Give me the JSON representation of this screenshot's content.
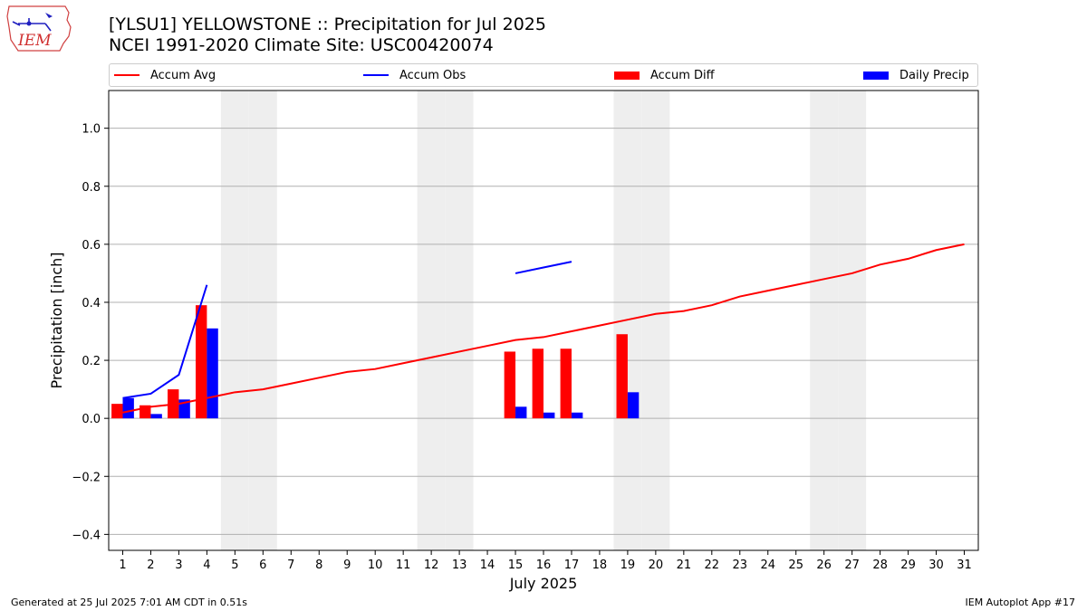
{
  "title": {
    "line1": "[YLSU1] YELLOWSTONE :: Precipitation for Jul 2025",
    "line2": "NCEI 1991-2020 Climate Site: USC00420074"
  },
  "logo_text": "IEM",
  "footer": {
    "left": "Generated at 25 Jul 2025 7:01 AM CDT in 0.51s",
    "right": "IEM Autoplot App #17"
  },
  "colors": {
    "avg": "#ff0000",
    "obs": "#0000ff",
    "diff": "#ff0000",
    "daily": "#0000ff",
    "weekend": "#eeeeee",
    "grid": "#b0b0b0"
  },
  "legend": {
    "avg": "Accum Avg",
    "obs": "Accum Obs",
    "diff": "Accum Diff",
    "daily": "Daily Precip"
  },
  "chart_data": {
    "type": "bar",
    "title": "[YLSU1] YELLOWSTONE :: Precipitation for Jul 2025",
    "subtitle": "NCEI 1991-2020 Climate Site: USC00420074",
    "xlabel": "July 2025",
    "ylabel": "Precipitation [inch]",
    "xlim": [
      0.5,
      31.5
    ],
    "ylim": [
      -0.455,
      1.13
    ],
    "x": [
      1,
      2,
      3,
      4,
      5,
      6,
      7,
      8,
      9,
      10,
      11,
      12,
      13,
      14,
      15,
      16,
      17,
      18,
      19,
      20,
      21,
      22,
      23,
      24,
      25,
      26,
      27,
      28,
      29,
      30,
      31
    ],
    "y_ticks": [
      -0.4,
      -0.2,
      0.0,
      0.2,
      0.4,
      0.6,
      0.8,
      1.0
    ],
    "y_tick_labels": [
      "−0.4",
      "−0.2",
      "0.0",
      "0.2",
      "0.4",
      "0.6",
      "0.8",
      "1.0"
    ],
    "grid": true,
    "legend_position": "top",
    "weekend_days": [
      5,
      6,
      12,
      13,
      19,
      20,
      26,
      27
    ],
    "series": [
      {
        "name": "Accum Avg",
        "type": "line",
        "x": [
          1,
          2,
          3,
          4,
          5,
          6,
          7,
          8,
          9,
          10,
          11,
          12,
          13,
          14,
          15,
          16,
          17,
          18,
          19,
          20,
          21,
          22,
          23,
          24,
          25,
          26,
          27,
          28,
          29,
          30,
          31
        ],
        "values": [
          0.02,
          0.04,
          0.05,
          0.07,
          0.09,
          0.1,
          0.12,
          0.14,
          0.16,
          0.17,
          0.19,
          0.21,
          0.23,
          0.25,
          0.27,
          0.28,
          0.3,
          0.32,
          0.34,
          0.36,
          0.37,
          0.39,
          0.42,
          0.44,
          0.46,
          0.48,
          0.5,
          0.53,
          0.55,
          0.58,
          0.6
        ]
      },
      {
        "name": "Accum Obs",
        "type": "line",
        "segments": [
          {
            "x": [
              1,
              2,
              3,
              4
            ],
            "values": [
              0.07,
              0.085,
              0.15,
              0.46
            ]
          },
          {
            "x": [
              15,
              16,
              17
            ],
            "values": [
              0.5,
              0.52,
              0.54
            ]
          }
        ]
      },
      {
        "name": "Accum Diff",
        "type": "bar",
        "x": [
          1,
          2,
          3,
          4,
          15,
          16,
          17,
          19
        ],
        "values": [
          0.05,
          0.045,
          0.1,
          0.39,
          0.23,
          0.24,
          0.24,
          0.29
        ]
      },
      {
        "name": "Daily Precip",
        "type": "bar",
        "x": [
          1,
          2,
          3,
          4,
          15,
          16,
          17,
          19
        ],
        "values": [
          0.07,
          0.015,
          0.065,
          0.31,
          0.04,
          0.02,
          0.02,
          0.09
        ]
      }
    ]
  }
}
